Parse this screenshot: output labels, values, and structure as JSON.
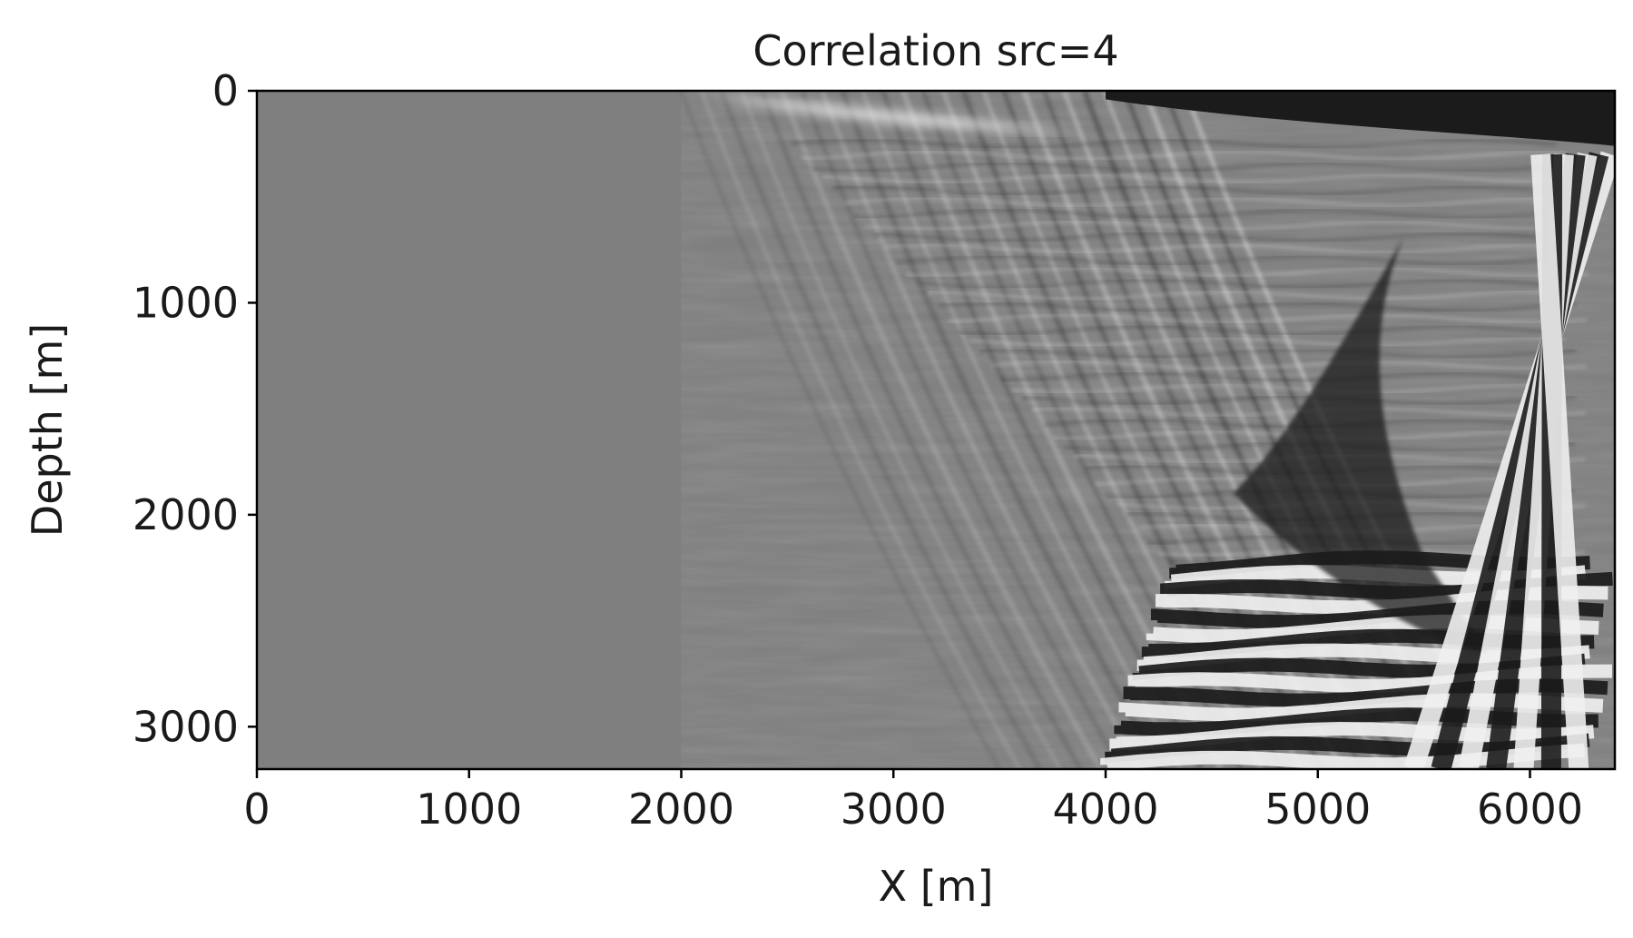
{
  "chart_data": {
    "type": "heatmap",
    "title": "Correlation src=4",
    "xlabel": "X [m]",
    "ylabel": "Depth [m]",
    "xlim": [
      0,
      6400
    ],
    "ylim": [
      3200,
      0
    ],
    "xticks": [
      0,
      1000,
      2000,
      3000,
      4000,
      5000,
      6000
    ],
    "xtick_labels": [
      "0",
      "1000",
      "2000",
      "3000",
      "4000",
      "5000",
      "6000"
    ],
    "yticks": [
      0,
      1000,
      2000,
      3000
    ],
    "ytick_labels": [
      "0",
      "1000",
      "2000",
      "3000"
    ],
    "colormap": "gray",
    "grid": false,
    "legend": "none",
    "colors": {
      "background": "#7f7f7f",
      "dark": "#1b1b1b",
      "light": "#efefef",
      "axes": "#000000"
    },
    "features": [
      {
        "kind": "bright-band-near-surface",
        "x": [
          2100,
          3900
        ],
        "depth": [
          0,
          200
        ]
      },
      {
        "kind": "dark-band-near-surface",
        "x": [
          4000,
          6400
        ],
        "depth": [
          0,
          250
        ]
      },
      {
        "kind": "dipping-event-front",
        "x": [
          2000,
          4500
        ],
        "depth": [
          0,
          3200
        ]
      },
      {
        "kind": "strong-horizontal-layering",
        "x": [
          4000,
          6400
        ],
        "depth": [
          2200,
          3200
        ]
      },
      {
        "kind": "steep-bright-streak-right",
        "x": [
          5400,
          6400
        ],
        "depth": [
          300,
          3200
        ]
      }
    ]
  }
}
